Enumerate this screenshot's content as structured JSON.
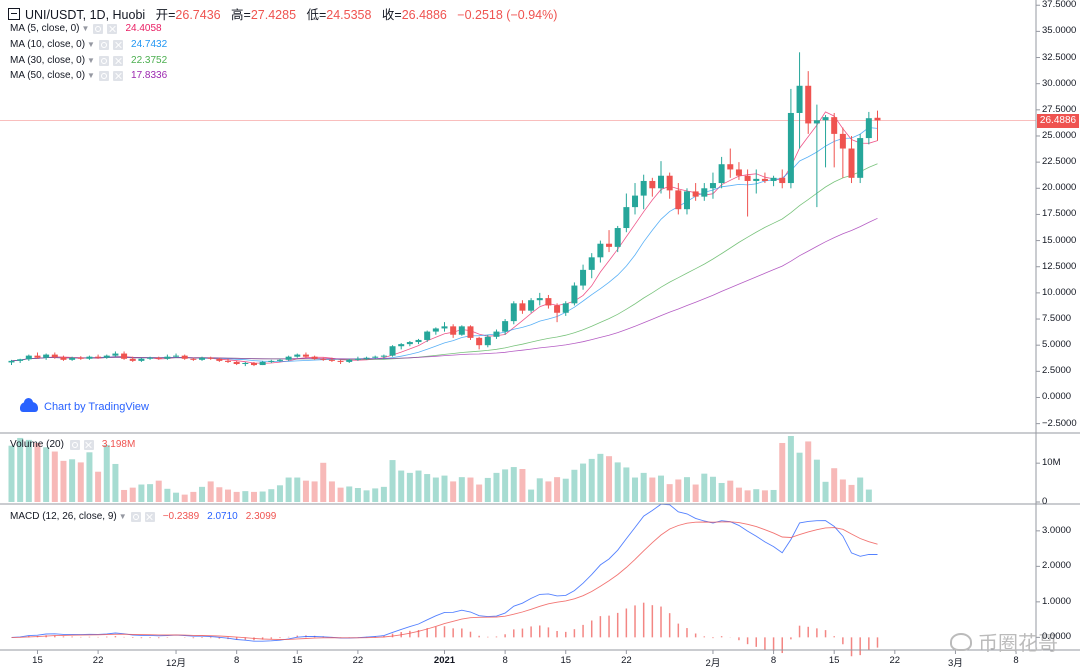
{
  "header": {
    "symbol": "UNI/USDT, 1D, Huobi",
    "open_label": "开=",
    "open": "26.7436",
    "high_label": "高=",
    "high": "27.4285",
    "low_label": "低=",
    "low": "24.5358",
    "close_label": "收=",
    "close": "26.4886",
    "change": "−0.2518 (−0.94%)"
  },
  "indicators": [
    {
      "label": "MA (5, close, 0)",
      "value": "24.4058",
      "color": "#e91e63"
    },
    {
      "label": "MA (10, close, 0)",
      "value": "24.7432",
      "color": "#2196f3"
    },
    {
      "label": "MA (30, close, 0)",
      "value": "22.3752",
      "color": "#4caf50"
    },
    {
      "label": "MA (50, close, 0)",
      "value": "17.8336",
      "color": "#9c27b0"
    }
  ],
  "volume_legend": {
    "label": "Volume (20)",
    "value": "3.198M",
    "color": "#ef5350"
  },
  "macd_legend": {
    "label": "MACD (12, 26, close, 9)",
    "hist": "−0.2389",
    "macd": "2.0710",
    "signal": "2.3099",
    "hist_color": "#ef5350",
    "macd_color": "#2962ff",
    "signal_color": "#ef5350"
  },
  "brand": "Chart by TradingView",
  "watermark": "币圈花哥",
  "last_price": "26.4886",
  "colors": {
    "up": "#26a69a",
    "down": "#ef5350",
    "vol_up": "#a7dcd2",
    "vol_down": "#f7b9b8"
  },
  "price_axis_ticks": [
    "37.5000",
    "35.0000",
    "32.5000",
    "30.0000",
    "27.5000",
    "25.0000",
    "22.5000",
    "20.0000",
    "17.5000",
    "15.0000",
    "12.5000",
    "10.0000",
    "7.5000",
    "5.0000",
    "2.5000",
    "0.0000",
    "−2.5000"
  ],
  "volume_axis_ticks": [
    "10M",
    "0"
  ],
  "macd_axis_ticks": [
    "3.0000",
    "2.0000",
    "1.0000",
    "0.0000"
  ],
  "date_ticks": [
    {
      "label": "15",
      "day": 3
    },
    {
      "label": "22",
      "day": 10
    },
    {
      "label": "12月",
      "day": 19
    },
    {
      "label": "8",
      "day": 26
    },
    {
      "label": "15",
      "day": 33
    },
    {
      "label": "22",
      "day": 40
    },
    {
      "label": "2021",
      "day": 50
    },
    {
      "label": "8",
      "day": 57
    },
    {
      "label": "15",
      "day": 64
    },
    {
      "label": "22",
      "day": 71
    },
    {
      "label": "2月",
      "day": 81
    },
    {
      "label": "8",
      "day": 88
    },
    {
      "label": "15",
      "day": 95
    },
    {
      "label": "22",
      "day": 102
    },
    {
      "label": "3月",
      "day": 109
    },
    {
      "label": "8",
      "day": 116
    }
  ],
  "chart_data": {
    "type": "candlestick",
    "symbol": "UNI/USDT",
    "interval": "1D",
    "price_range": [
      -3.3,
      38.0
    ],
    "volume_range": [
      0,
      17000000
    ],
    "macd_range": [
      -0.3,
      3.7
    ],
    "candles": [
      [
        3.35,
        3.6,
        3.1,
        3.5
      ],
      [
        3.5,
        3.7,
        3.3,
        3.65
      ],
      [
        3.65,
        4.1,
        3.5,
        4.0
      ],
      [
        4.0,
        4.3,
        3.7,
        3.8
      ],
      [
        3.8,
        4.2,
        3.6,
        4.1
      ],
      [
        4.1,
        4.3,
        3.7,
        3.85
      ],
      [
        3.85,
        4.0,
        3.5,
        3.6
      ],
      [
        3.6,
        3.9,
        3.5,
        3.8
      ],
      [
        3.8,
        3.95,
        3.6,
        3.7
      ],
      [
        3.7,
        4.0,
        3.6,
        3.9
      ],
      [
        3.9,
        4.1,
        3.7,
        3.8
      ],
      [
        3.8,
        4.1,
        3.7,
        4.0
      ],
      [
        4.0,
        4.4,
        3.9,
        4.2
      ],
      [
        4.2,
        4.4,
        3.6,
        3.7
      ],
      [
        3.7,
        3.9,
        3.4,
        3.5
      ],
      [
        3.5,
        3.8,
        3.4,
        3.7
      ],
      [
        3.7,
        3.9,
        3.6,
        3.8
      ],
      [
        3.8,
        3.9,
        3.6,
        3.7
      ],
      [
        3.7,
        4.1,
        3.6,
        3.9
      ],
      [
        3.9,
        4.2,
        3.8,
        4.0
      ],
      [
        4.0,
        4.1,
        3.6,
        3.7
      ],
      [
        3.7,
        3.8,
        3.5,
        3.6
      ],
      [
        3.6,
        3.9,
        3.5,
        3.8
      ],
      [
        3.8,
        3.9,
        3.6,
        3.7
      ],
      [
        3.7,
        3.8,
        3.4,
        3.5
      ],
      [
        3.5,
        3.7,
        3.3,
        3.4
      ],
      [
        3.4,
        3.5,
        3.1,
        3.2
      ],
      [
        3.2,
        3.4,
        3.0,
        3.3
      ],
      [
        3.3,
        3.4,
        3.0,
        3.1
      ],
      [
        3.1,
        3.5,
        3.1,
        3.4
      ],
      [
        3.4,
        3.6,
        3.3,
        3.5
      ],
      [
        3.5,
        3.7,
        3.4,
        3.6
      ],
      [
        3.6,
        4.0,
        3.5,
        3.9
      ],
      [
        3.9,
        4.2,
        3.8,
        4.1
      ],
      [
        4.1,
        4.3,
        3.8,
        3.9
      ],
      [
        3.9,
        4.0,
        3.6,
        3.7
      ],
      [
        3.7,
        3.8,
        3.5,
        3.6
      ],
      [
        3.6,
        3.8,
        3.4,
        3.5
      ],
      [
        3.5,
        3.6,
        3.2,
        3.4
      ],
      [
        3.4,
        3.7,
        3.3,
        3.6
      ],
      [
        3.6,
        3.9,
        3.5,
        3.7
      ],
      [
        3.7,
        3.9,
        3.6,
        3.8
      ],
      [
        3.8,
        4.0,
        3.7,
        3.9
      ],
      [
        3.9,
        4.1,
        3.7,
        4.0
      ],
      [
        4.0,
        5.0,
        3.9,
        4.9
      ],
      [
        4.9,
        5.2,
        4.6,
        5.1
      ],
      [
        5.1,
        5.4,
        4.9,
        5.3
      ],
      [
        5.3,
        5.6,
        5.1,
        5.5
      ],
      [
        5.5,
        6.4,
        5.3,
        6.3
      ],
      [
        6.3,
        6.7,
        6.0,
        6.6
      ],
      [
        6.6,
        7.2,
        6.3,
        6.8
      ],
      [
        6.8,
        7.0,
        5.7,
        6.0
      ],
      [
        6.0,
        6.9,
        5.9,
        6.8
      ],
      [
        6.8,
        6.9,
        5.5,
        5.7
      ],
      [
        5.7,
        5.8,
        4.6,
        5.0
      ],
      [
        5.0,
        6.0,
        4.8,
        5.8
      ],
      [
        5.8,
        6.5,
        5.6,
        6.3
      ],
      [
        6.3,
        7.5,
        6.0,
        7.3
      ],
      [
        7.3,
        9.2,
        7.0,
        9.0
      ],
      [
        9.0,
        9.3,
        8.0,
        8.3
      ],
      [
        8.3,
        9.5,
        8.1,
        9.3
      ],
      [
        9.3,
        10.0,
        8.8,
        9.5
      ],
      [
        9.5,
        9.8,
        8.5,
        8.8
      ],
      [
        8.8,
        9.0,
        7.2,
        8.1
      ],
      [
        8.1,
        9.2,
        7.8,
        9.0
      ],
      [
        9.0,
        11.0,
        8.8,
        10.7
      ],
      [
        10.7,
        12.7,
        10.3,
        12.2
      ],
      [
        12.2,
        13.8,
        11.4,
        13.4
      ],
      [
        13.4,
        15.0,
        12.9,
        14.7
      ],
      [
        14.7,
        16.0,
        13.9,
        14.4
      ],
      [
        14.4,
        16.4,
        13.9,
        16.2
      ],
      [
        16.2,
        19.5,
        15.8,
        18.2
      ],
      [
        18.2,
        20.5,
        17.5,
        19.3
      ],
      [
        19.3,
        21.3,
        18.0,
        20.7
      ],
      [
        20.7,
        21.0,
        19.2,
        20.0
      ],
      [
        20.0,
        22.6,
        19.5,
        21.2
      ],
      [
        21.2,
        21.5,
        19.0,
        19.8
      ],
      [
        19.8,
        20.5,
        17.5,
        18.0
      ],
      [
        18.0,
        20.0,
        17.5,
        19.7
      ],
      [
        19.7,
        20.5,
        18.8,
        19.2
      ],
      [
        19.2,
        20.5,
        18.8,
        20.0
      ],
      [
        20.0,
        21.5,
        19.0,
        20.5
      ],
      [
        20.5,
        23.0,
        20.0,
        22.3
      ],
      [
        22.3,
        23.8,
        21.0,
        21.8
      ],
      [
        21.8,
        22.5,
        20.8,
        21.2
      ],
      [
        21.2,
        21.8,
        17.3,
        20.7
      ],
      [
        20.7,
        21.8,
        19.5,
        20.9
      ],
      [
        20.9,
        21.5,
        20.5,
        20.7
      ],
      [
        20.7,
        21.2,
        20.2,
        21.0
      ],
      [
        21.0,
        21.8,
        20.0,
        20.5
      ],
      [
        20.5,
        29.5,
        20.0,
        27.2
      ],
      [
        27.2,
        33.0,
        23.8,
        29.8
      ],
      [
        29.8,
        31.2,
        25.2,
        26.2
      ],
      [
        26.2,
        28.0,
        18.2,
        26.5
      ],
      [
        26.5,
        27.0,
        22.0,
        26.8
      ],
      [
        26.8,
        27.2,
        22.0,
        25.2
      ],
      [
        25.2,
        25.8,
        21.0,
        23.8
      ],
      [
        23.8,
        25.0,
        20.5,
        21.0
      ],
      [
        21.0,
        25.2,
        20.5,
        24.8
      ],
      [
        24.8,
        27.3,
        24.2,
        26.7
      ],
      [
        26.74,
        27.43,
        24.54,
        26.49
      ]
    ],
    "volume_m": [
      14.5,
      16.5,
      16.0,
      15.2,
      14.1,
      13.0,
      10.6,
      11.0,
      10.2,
      12.8,
      7.8,
      14.7,
      9.8,
      3.1,
      3.7,
      4.5,
      4.6,
      5.5,
      3.4,
      2.4,
      1.9,
      2.6,
      3.9,
      5.3,
      3.8,
      3.2,
      2.6,
      2.8,
      2.6,
      2.7,
      3.3,
      4.3,
      6.3,
      6.3,
      5.5,
      5.3,
      10.1,
      5.3,
      3.7,
      4.0,
      3.6,
      3.0,
      3.5,
      3.9,
      10.8,
      8.1,
      7.5,
      8.1,
      7.2,
      6.3,
      6.8,
      5.3,
      6.4,
      6.3,
      4.5,
      6.2,
      7.5,
      8.4,
      9.0,
      8.5,
      3.2,
      6.1,
      5.3,
      6.4,
      6.0,
      8.3,
      9.9,
      11.1,
      12.4,
      11.8,
      10.2,
      8.9,
      6.3,
      7.5,
      6.3,
      6.8,
      4.6,
      5.8,
      6.4,
      4.5,
      7.3,
      6.5,
      4.9,
      5.5,
      3.7,
      3.0,
      3.3,
      3.0,
      3.1,
      15.2,
      17.0,
      12.7,
      15.6,
      10.9,
      5.2,
      8.7,
      5.8,
      4.4,
      6.3,
      3.2
    ],
    "ma_values": {
      "MA5": 24.4058,
      "MA10": 24.7432,
      "MA30": 22.3752,
      "MA50": 17.8336
    },
    "macd_values": {
      "histogram": -0.2389,
      "macd": 2.071,
      "signal": 2.3099
    }
  }
}
